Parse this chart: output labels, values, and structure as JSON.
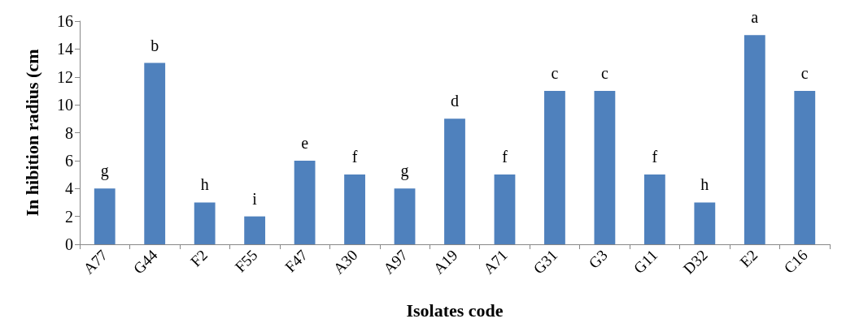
{
  "chart_data": {
    "type": "bar",
    "xlabel": "Isolates code",
    "ylabel": "In hibition radius (cm",
    "categories": [
      "A77",
      "G44",
      "F2",
      "F55",
      "F47",
      "A30",
      "A97",
      "A19",
      "A71",
      "G31",
      "G3",
      "G11",
      "D32",
      "E2",
      "C16"
    ],
    "values": [
      4,
      13,
      3,
      2,
      6,
      5,
      4,
      9,
      5,
      11,
      11,
      5,
      3,
      15,
      11
    ],
    "value_labels": [
      "g",
      "b",
      "h",
      "i",
      "e",
      "f",
      "g",
      "d",
      "f",
      "c",
      "c",
      "f",
      "h",
      "a",
      "c"
    ],
    "color": "#4f81bd",
    "ylim": [
      0,
      16
    ],
    "yticks": [
      0,
      2,
      4,
      6,
      8,
      10,
      12,
      14,
      16
    ],
    "grid": false
  }
}
